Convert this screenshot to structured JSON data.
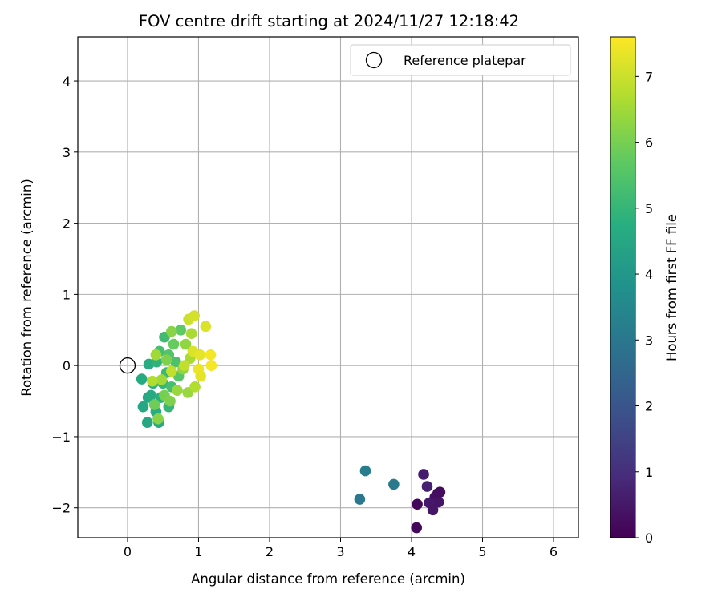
{
  "chart_data": {
    "type": "scatter",
    "title": "FOV centre drift starting at 2024/11/27 12:18:42",
    "xlabel": "Angular distance from reference (arcmin)",
    "ylabel": "Rotation from reference (arcmin)",
    "xlim": [
      -0.7,
      6.35
    ],
    "ylim": [
      -2.42,
      4.62
    ],
    "x_ticks": [
      0,
      1,
      2,
      3,
      4,
      5,
      6
    ],
    "y_ticks": [
      -2,
      -1,
      0,
      1,
      2,
      3,
      4
    ],
    "grid": true,
    "legend": {
      "placement": "top-right",
      "entries": [
        "Reference platepar"
      ]
    },
    "reference_point": {
      "x": 0,
      "y": 0,
      "label": "Reference platepar",
      "marker": "open-circle",
      "color": "#000000"
    },
    "colorbar": {
      "label": "Hours from first FF file",
      "range": [
        0,
        7.6
      ],
      "ticks": [
        0,
        1,
        2,
        3,
        4,
        5,
        6,
        7
      ],
      "colormap": "viridis"
    },
    "series": [
      {
        "points": [
          {
            "x": 4.37,
            "y": -1.8,
            "h": 0.2
          },
          {
            "x": 4.33,
            "y": -1.85,
            "h": 0.3
          },
          {
            "x": 4.38,
            "y": -1.92,
            "h": 0.4
          },
          {
            "x": 4.25,
            "y": -1.93,
            "h": 0.5
          },
          {
            "x": 4.3,
            "y": -2.03,
            "h": 0.45
          },
          {
            "x": 4.08,
            "y": -1.95,
            "h": 0.1
          },
          {
            "x": 4.07,
            "y": -2.28,
            "h": 0.15
          },
          {
            "x": 4.17,
            "y": -1.53,
            "h": 0.6
          },
          {
            "x": 4.22,
            "y": -1.7,
            "h": 0.7
          },
          {
            "x": 4.4,
            "y": -1.78,
            "h": 0.25
          },
          {
            "x": 3.35,
            "y": -1.48,
            "h": 3.2
          },
          {
            "x": 3.27,
            "y": -1.88,
            "h": 3.0
          },
          {
            "x": 3.75,
            "y": -1.67,
            "h": 3.1
          },
          {
            "x": 0.2,
            "y": -0.19,
            "h": 4.6
          },
          {
            "x": 0.22,
            "y": -0.58,
            "h": 4.5
          },
          {
            "x": 0.28,
            "y": -0.8,
            "h": 4.5
          },
          {
            "x": 0.29,
            "y": -0.45,
            "h": 4.5
          },
          {
            "x": 0.33,
            "y": -0.42,
            "h": 4.6
          },
          {
            "x": 0.3,
            "y": 0.02,
            "h": 4.7
          },
          {
            "x": 0.4,
            "y": -0.65,
            "h": 4.7
          },
          {
            "x": 0.44,
            "y": -0.8,
            "h": 4.6
          },
          {
            "x": 0.36,
            "y": -0.25,
            "h": 4.8
          },
          {
            "x": 0.41,
            "y": 0.05,
            "h": 4.9
          },
          {
            "x": 0.47,
            "y": -0.45,
            "h": 4.8
          },
          {
            "x": 0.5,
            "y": -0.25,
            "h": 5.0
          },
          {
            "x": 0.55,
            "y": -0.1,
            "h": 5.1
          },
          {
            "x": 0.58,
            "y": -0.58,
            "h": 5.0
          },
          {
            "x": 0.52,
            "y": 0.4,
            "h": 5.2
          },
          {
            "x": 0.45,
            "y": 0.2,
            "h": 5.3
          },
          {
            "x": 0.62,
            "y": -0.3,
            "h": 5.3
          },
          {
            "x": 0.68,
            "y": 0.05,
            "h": 5.4
          },
          {
            "x": 0.58,
            "y": 0.15,
            "h": 5.5
          },
          {
            "x": 0.72,
            "y": -0.15,
            "h": 5.6
          },
          {
            "x": 0.75,
            "y": 0.5,
            "h": 5.7
          },
          {
            "x": 0.65,
            "y": 0.3,
            "h": 5.8
          },
          {
            "x": 0.38,
            "y": -0.55,
            "h": 5.9
          },
          {
            "x": 0.43,
            "y": -0.75,
            "h": 6.2
          },
          {
            "x": 0.52,
            "y": -0.42,
            "h": 6.0
          },
          {
            "x": 0.6,
            "y": -0.5,
            "h": 6.1
          },
          {
            "x": 0.55,
            "y": 0.08,
            "h": 6.1
          },
          {
            "x": 0.62,
            "y": 0.48,
            "h": 6.2
          },
          {
            "x": 0.78,
            "y": -0.05,
            "h": 6.3
          },
          {
            "x": 0.82,
            "y": 0.3,
            "h": 6.3
          },
          {
            "x": 0.7,
            "y": -0.35,
            "h": 6.4
          },
          {
            "x": 0.85,
            "y": -0.38,
            "h": 6.4
          },
          {
            "x": 0.48,
            "y": -0.2,
            "h": 6.5
          },
          {
            "x": 0.4,
            "y": 0.15,
            "h": 6.5
          },
          {
            "x": 0.9,
            "y": 0.45,
            "h": 6.6
          },
          {
            "x": 0.88,
            "y": 0.1,
            "h": 6.6
          },
          {
            "x": 0.95,
            "y": -0.3,
            "h": 6.7
          },
          {
            "x": 0.35,
            "y": -0.22,
            "h": 6.7
          },
          {
            "x": 0.62,
            "y": -0.08,
            "h": 6.9
          },
          {
            "x": 0.8,
            "y": 0.0,
            "h": 6.9
          },
          {
            "x": 0.86,
            "y": 0.65,
            "h": 7.0
          },
          {
            "x": 0.94,
            "y": 0.7,
            "h": 7.1
          },
          {
            "x": 1.1,
            "y": 0.55,
            "h": 7.2
          },
          {
            "x": 0.92,
            "y": 0.2,
            "h": 7.2
          },
          {
            "x": 1.02,
            "y": 0.15,
            "h": 7.3
          },
          {
            "x": 1.0,
            "y": -0.05,
            "h": 7.4
          },
          {
            "x": 1.03,
            "y": -0.15,
            "h": 7.3
          },
          {
            "x": 1.17,
            "y": 0.15,
            "h": 7.5
          },
          {
            "x": 1.18,
            "y": 0.0,
            "h": 7.5
          }
        ]
      }
    ]
  }
}
